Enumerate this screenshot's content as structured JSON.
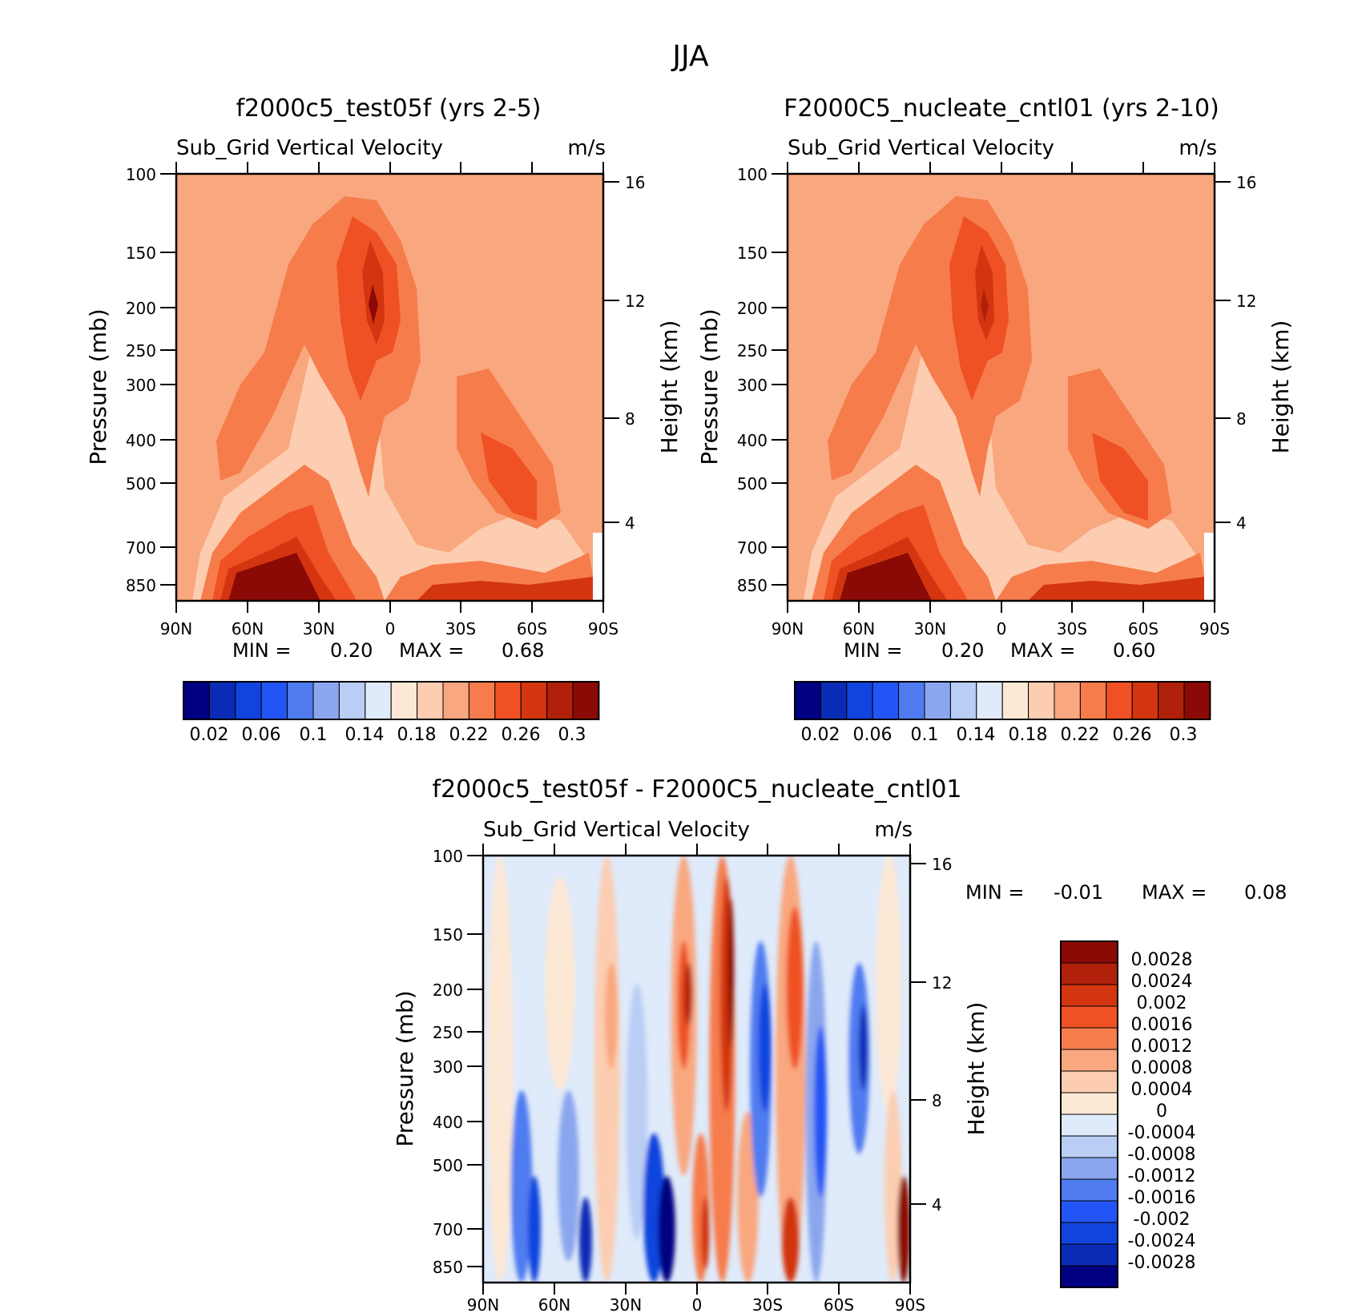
{
  "figure_title": "JJA",
  "chart_data": [
    {
      "type": "heatmap",
      "id": "panel1",
      "title": "f2000c5_test05f (yrs 2-5)",
      "subtitle_left": "Sub_Grid Vertical Velocity",
      "subtitle_right": "m/s",
      "ylabel": "Pressure (mb)",
      "y2label": "Height (km)",
      "xticks": [
        "90N",
        "60N",
        "30N",
        "0",
        "30S",
        "60S",
        "90S"
      ],
      "yticks": [
        "100",
        "150",
        "200",
        "250",
        "300",
        "400",
        "500",
        "700",
        "850"
      ],
      "y2ticks": [
        "16",
        "12",
        "8",
        "4"
      ],
      "stats": {
        "min_label": "MIN =",
        "min": "0.20",
        "max_label": "MAX =",
        "max": "0.68"
      },
      "colorbar_labels": [
        "0.02",
        "0.06",
        "0.1",
        "0.14",
        "0.18",
        "0.22",
        "0.26",
        "0.3"
      ],
      "xlim": [
        90,
        -90
      ],
      "ylim": [
        100,
        850
      ],
      "features": [
        {
          "lat": 12,
          "p": 200,
          "value": 0.3,
          "note": "upper tropospheric maximum"
        },
        {
          "lat": 40,
          "p": 850,
          "value": 0.3,
          "note": "lower tropospheric maximum"
        },
        {
          "lat": -50,
          "p": 500,
          "value": 0.26,
          "note": "southern mid-level maximum"
        }
      ]
    },
    {
      "type": "heatmap",
      "id": "panel2",
      "title": "F2000C5_nucleate_cntl01 (yrs 2-10)",
      "subtitle_left": "Sub_Grid Vertical Velocity",
      "subtitle_right": "m/s",
      "ylabel": "Pressure (mb)",
      "y2label": "Height (km)",
      "xticks": [
        "90N",
        "60N",
        "30N",
        "0",
        "30S",
        "60S",
        "90S"
      ],
      "yticks": [
        "100",
        "150",
        "200",
        "250",
        "300",
        "400",
        "500",
        "700",
        "850"
      ],
      "y2ticks": [
        "16",
        "12",
        "8",
        "4"
      ],
      "stats": {
        "min_label": "MIN =",
        "min": "0.20",
        "max_label": "MAX =",
        "max": "0.60"
      },
      "colorbar_labels": [
        "0.02",
        "0.06",
        "0.1",
        "0.14",
        "0.18",
        "0.22",
        "0.26",
        "0.3"
      ],
      "xlim": [
        90,
        -90
      ],
      "ylim": [
        100,
        850
      ]
    },
    {
      "type": "heatmap",
      "id": "panel3",
      "title": "f2000c5_test05f - F2000C5_nucleate_cntl01",
      "subtitle_left": "Sub_Grid Vertical Velocity",
      "subtitle_right": "m/s",
      "ylabel": "Pressure (mb)",
      "y2label": "Height (km)",
      "xticks": [
        "90N",
        "60N",
        "30N",
        "0",
        "30S",
        "60S",
        "90S"
      ],
      "yticks": [
        "100",
        "150",
        "200",
        "250",
        "300",
        "400",
        "500",
        "700",
        "850"
      ],
      "y2ticks": [
        "16",
        "12",
        "8",
        "4"
      ],
      "stats": {
        "min_label": "MIN =",
        "min": "-0.01",
        "max_label": "MAX =",
        "max": "0.08"
      },
      "colorbar_labels": [
        "0.0028",
        "0.0024",
        "0.002",
        "0.0016",
        "0.0012",
        "0.0008",
        "0.0004",
        "0",
        "-0.0004",
        "-0.0008",
        "-0.0012",
        "-0.0016",
        "-0.002",
        "-0.0024",
        "-0.0028"
      ],
      "xlim": [
        90,
        -90
      ],
      "ylim": [
        100,
        850
      ]
    }
  ],
  "colors": {
    "abs_levels": [
      "#000080",
      "#0a2bb5",
      "#1144de",
      "#2255f5",
      "#4f7bf0",
      "#8aa6ee",
      "#b9cdf5",
      "#dfeafa",
      "#fde8d6",
      "#fccdb1",
      "#f9a77f",
      "#f67c4c",
      "#ef5124",
      "#d23510",
      "#b0200b",
      "#8b0a06"
    ],
    "diff_levels": [
      "#000080",
      "#0a2bb5",
      "#1144de",
      "#2255f5",
      "#4f7bf0",
      "#8aa6ee",
      "#b9cdf5",
      "#dfeafa",
      "#fde8d6",
      "#fccdb1",
      "#f9a77f",
      "#f67c4c",
      "#ef5124",
      "#d23510",
      "#b0200b",
      "#8b0a06"
    ]
  }
}
